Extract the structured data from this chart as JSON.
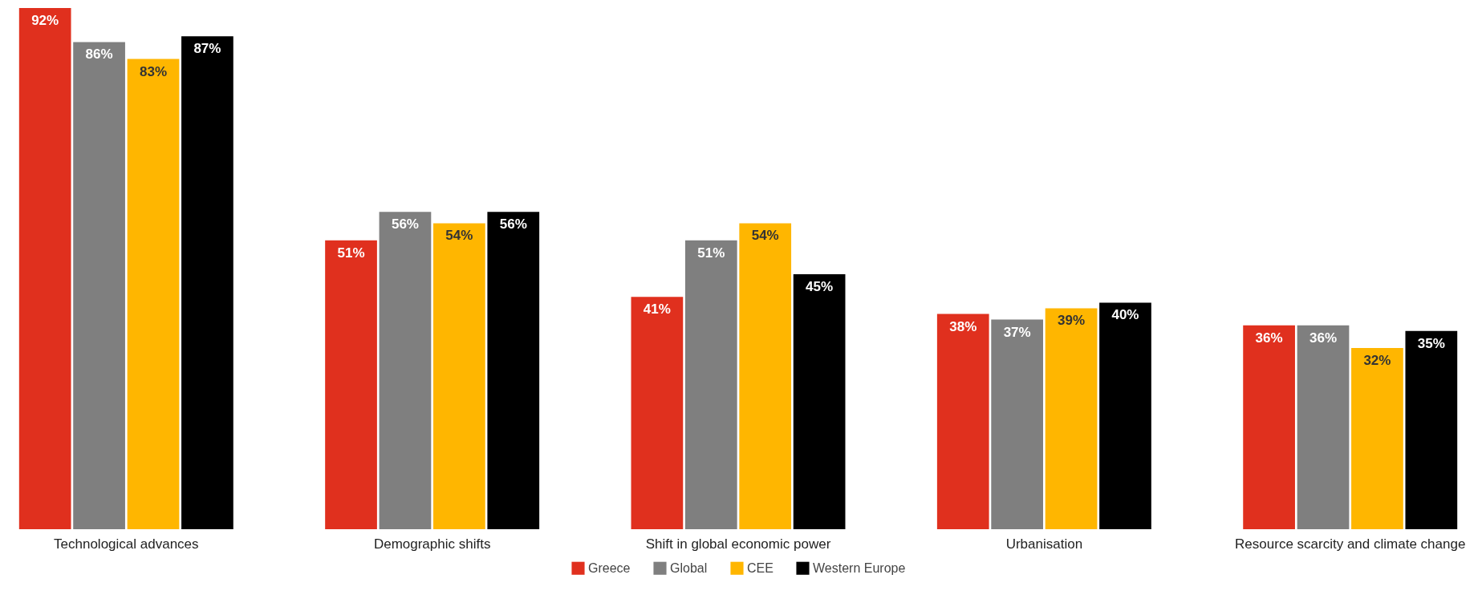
{
  "chart_data": {
    "type": "bar",
    "categories": [
      "Technological advances",
      "Demographic shifts",
      "Shift in global economic power",
      "Urbanisation",
      "Resource scarcity and climate change"
    ],
    "series": [
      {
        "name": "Greece",
        "color": "#e0301e",
        "values": [
          92,
          51,
          41,
          38,
          36
        ],
        "value_labels": [
          "92%",
          "51%",
          "41%",
          "38%",
          "36%"
        ]
      },
      {
        "name": "Global",
        "color": "#7f7f7f",
        "values": [
          86,
          56,
          51,
          37,
          36
        ],
        "value_labels": [
          "86%",
          "56%",
          "51%",
          "37%",
          "36%"
        ]
      },
      {
        "name": "CEE",
        "color": "#ffb600",
        "values": [
          83,
          54,
          54,
          39,
          32
        ],
        "value_labels": [
          "83%",
          "54%",
          "54%",
          "39%",
          "32%"
        ]
      },
      {
        "name": "Western Europe",
        "color": "#000000",
        "values": [
          87,
          56,
          45,
          40,
          35
        ],
        "value_labels": [
          "87%",
          "56%",
          "45%",
          "40%",
          "35%"
        ]
      }
    ],
    "legend": "bottom"
  }
}
